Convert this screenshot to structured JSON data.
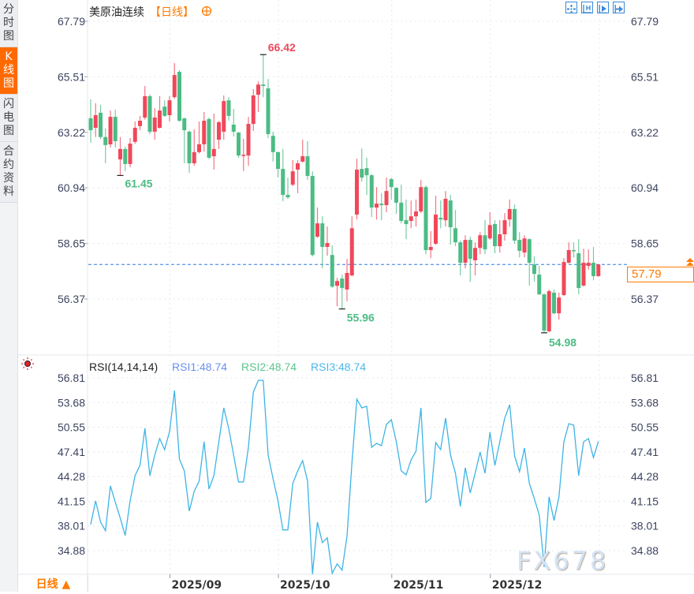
{
  "sidebar": {
    "tabs": [
      {
        "label": "分时图",
        "active": false
      },
      {
        "label": "K线图",
        "active": true
      },
      {
        "label": "闪电图",
        "active": false
      },
      {
        "label": "合约资料",
        "active": false
      }
    ]
  },
  "header": {
    "instrument": "美原油连续",
    "period": "【日线】",
    "add_icon": "plus-circle-icon"
  },
  "toolbar": {
    "icons": [
      "crosshair-icon",
      "fit-range-icon",
      "play-icon",
      "jump-to-end-icon"
    ]
  },
  "colors": {
    "up": "#f0485a",
    "down": "#4cbc84",
    "accent": "#ff7a00",
    "last_price_line": "#2f7fe0",
    "rsi_line": "#3db4e6",
    "rsi1": "#6b8ff0",
    "rsi2": "#5cc58d",
    "rsi3": "#4db6ea"
  },
  "rsi_header": {
    "title": "RSI(14,14,14)",
    "rsi1": "RSI1:48.74",
    "rsi2": "RSI2:48.74",
    "rsi3": "RSI3:48.74",
    "icon": "sun-icon"
  },
  "last_price": "57.79",
  "bottom": {
    "period_label": "日线 ▲"
  },
  "watermark": "FX678",
  "chart_data": [
    {
      "type": "candlestick",
      "ohlc_order": [
        "open",
        "high",
        "low",
        "close"
      ],
      "y_ticks": [
        "67.79",
        "65.51",
        "63.22",
        "60.94",
        "58.65",
        "56.37"
      ],
      "ylim": [
        54.6,
        67.79
      ],
      "grid": true,
      "annotations": {
        "max": "66.42",
        "max_index": 35,
        "min_left": "61.45",
        "min_left_index": 6,
        "min_mid": "55.96",
        "min_mid_index": 51,
        "min_right": "54.98",
        "min_right_index": 92
      },
      "x_labels": [
        {
          "label": "2025/09",
          "index": 16
        },
        {
          "label": "2025/10",
          "index": 38
        },
        {
          "label": "2025/11",
          "index": 61
        },
        {
          "label": "2025/12",
          "index": 81
        }
      ],
      "candles": [
        [
          63.8,
          64.58,
          62.8,
          63.31
        ],
        [
          63.41,
          64.42,
          63.03,
          63.93
        ],
        [
          64.03,
          64.35,
          62.95,
          63.03
        ],
        [
          63.03,
          63.38,
          61.95,
          62.7
        ],
        [
          62.73,
          64.12,
          62.6,
          63.86
        ],
        [
          63.86,
          64.16,
          62.6,
          62.86
        ],
        [
          62.11,
          63.03,
          61.45,
          62.54
        ],
        [
          62.54,
          62.64,
          61.63,
          61.92
        ],
        [
          61.92,
          62.99,
          61.79,
          62.76
        ],
        [
          62.83,
          63.67,
          62.75,
          63.41
        ],
        [
          63.48,
          63.9,
          63.31,
          63.7
        ],
        [
          63.83,
          65.13,
          63.75,
          64.71
        ],
        [
          64.71,
          64.78,
          63.15,
          63.25
        ],
        [
          63.25,
          64.22,
          62.92,
          63.83
        ],
        [
          63.41,
          64.71,
          63.38,
          64.12
        ],
        [
          64.28,
          64.54,
          63.86,
          63.9
        ],
        [
          63.93,
          64.71,
          63.67,
          64.54
        ],
        [
          64.67,
          66.07,
          64.61,
          65.58
        ],
        [
          65.71,
          65.78,
          63.65,
          63.7
        ],
        [
          63.8,
          63.83,
          61.95,
          63.31
        ],
        [
          63.25,
          63.3,
          61.55,
          61.95
        ],
        [
          61.95,
          63.34,
          61.85,
          62.41
        ],
        [
          62.41,
          63.67,
          62.35,
          62.73
        ],
        [
          62.73,
          64.06,
          62.43,
          63.7
        ],
        [
          63.77,
          63.83,
          62.12,
          62.18
        ],
        [
          62.24,
          63.99,
          61.69,
          62.54
        ],
        [
          62.92,
          63.7,
          62.54,
          63.64
        ],
        [
          63.25,
          64.74,
          62.92,
          64.51
        ],
        [
          64.54,
          64.67,
          63.7,
          63.9
        ],
        [
          63.54,
          64.19,
          63.05,
          63.25
        ],
        [
          63.21,
          63.25,
          62.18,
          62.27
        ],
        [
          62.27,
          62.96,
          61.63,
          62.3
        ],
        [
          62.27,
          63.86,
          61.85,
          63.57
        ],
        [
          63.57,
          65.0,
          63.28,
          64.74
        ],
        [
          64.77,
          65.32,
          64.06,
          65.19
        ],
        [
          65.19,
          66.42,
          64.67,
          65.13
        ],
        [
          65.03,
          65.42,
          62.99,
          63.15
        ],
        [
          63.08,
          63.25,
          62.02,
          62.41
        ],
        [
          62.41,
          62.43,
          61.36,
          61.72
        ],
        [
          61.72,
          62.54,
          60.39,
          60.65
        ],
        [
          60.65,
          61.36,
          60.49,
          60.55
        ],
        [
          61.07,
          62.08,
          61.01,
          61.62
        ],
        [
          61.69,
          62.08,
          60.72,
          61.95
        ],
        [
          62.02,
          62.92,
          61.98,
          62.24
        ],
        [
          62.24,
          62.86,
          61.27,
          61.43
        ],
        [
          61.43,
          61.62,
          58.12,
          58.18
        ],
        [
          58.93,
          60.13,
          58.88,
          59.48
        ],
        [
          59.48,
          59.77,
          57.63,
          58.51
        ],
        [
          58.51,
          59.35,
          58.15,
          58.67
        ],
        [
          58.18,
          58.57,
          56.82,
          56.88
        ],
        [
          56.91,
          57.24,
          56.07,
          57.11
        ],
        [
          57.21,
          57.37,
          55.96,
          56.82
        ],
        [
          56.76,
          58.02,
          56.27,
          57.44
        ],
        [
          57.34,
          59.77,
          57.3,
          59.28
        ],
        [
          59.84,
          62.14,
          59.64,
          61.69
        ],
        [
          61.72,
          62.56,
          61.2,
          61.36
        ],
        [
          61.75,
          62.18,
          60.65,
          61.46
        ],
        [
          61.46,
          61.5,
          59.74,
          60.13
        ],
        [
          60.13,
          60.97,
          59.64,
          60.29
        ],
        [
          60.29,
          60.72,
          59.61,
          60.23
        ],
        [
          60.23,
          61.36,
          59.94,
          60.81
        ],
        [
          61.3,
          61.36,
          60.46,
          60.97
        ],
        [
          60.94,
          60.97,
          59.87,
          60.33
        ],
        [
          60.33,
          61.07,
          59.48,
          59.58
        ],
        [
          59.61,
          60.46,
          58.83,
          59.45
        ],
        [
          59.58,
          60.42,
          59.28,
          59.77
        ],
        [
          59.77,
          60.46,
          59.35,
          59.97
        ],
        [
          59.97,
          61.27,
          59.9,
          60.97
        ],
        [
          60.97,
          61.04,
          58.21,
          58.38
        ],
        [
          58.38,
          59.16,
          58.05,
          58.51
        ],
        [
          58.64,
          60.62,
          58.6,
          59.84
        ],
        [
          59.71,
          60.42,
          59.28,
          59.64
        ],
        [
          59.61,
          60.81,
          59.35,
          60.49
        ],
        [
          60.42,
          60.65,
          58.6,
          59.32
        ],
        [
          59.28,
          60.03,
          58.54,
          58.7
        ],
        [
          58.7,
          58.77,
          57.34,
          57.86
        ],
        [
          57.86,
          58.99,
          57.63,
          58.8
        ],
        [
          58.8,
          58.93,
          57.08,
          58.02
        ],
        [
          57.96,
          58.7,
          57.34,
          58.47
        ],
        [
          58.47,
          59.12,
          58.21,
          58.99
        ],
        [
          58.99,
          59.61,
          58.21,
          58.41
        ],
        [
          58.86,
          59.94,
          58.8,
          59.41
        ],
        [
          59.45,
          59.61,
          58.25,
          58.54
        ],
        [
          58.54,
          59.61,
          58.28,
          59.03
        ],
        [
          59.03,
          59.9,
          58.77,
          59.61
        ],
        [
          59.64,
          60.46,
          59.35,
          60.07
        ],
        [
          60.07,
          60.26,
          58.64,
          58.77
        ],
        [
          58.8,
          59.12,
          58.08,
          58.35
        ],
        [
          58.28,
          58.99,
          58.08,
          58.86
        ],
        [
          58.83,
          58.86,
          56.92,
          57.86
        ],
        [
          57.79,
          58.12,
          57.08,
          57.4
        ],
        [
          57.37,
          57.73,
          56.53,
          56.56
        ],
        [
          56.56,
          56.6,
          54.98,
          55.07
        ],
        [
          55.04,
          56.76,
          55.0,
          56.69
        ],
        [
          56.63,
          56.76,
          55.74,
          55.78
        ],
        [
          55.78,
          56.63,
          55.52,
          56.43
        ],
        [
          56.53,
          58.05,
          56.5,
          57.89
        ],
        [
          57.86,
          58.7,
          57.83,
          58.38
        ],
        [
          58.38,
          58.7,
          58.08,
          58.35
        ],
        [
          58.25,
          58.83,
          56.56,
          56.82
        ],
        [
          56.92,
          58.44,
          56.88,
          57.86
        ],
        [
          57.73,
          58.41,
          57.57,
          57.86
        ],
        [
          57.86,
          58.51,
          57.14,
          57.31
        ],
        [
          57.31,
          57.8,
          57.28,
          57.79
        ]
      ],
      "last_price": 57.79
    },
    {
      "type": "line",
      "title": "RSI(14,14,14)",
      "y_ticks": [
        "56.81",
        "53.68",
        "50.55",
        "47.41",
        "44.28",
        "41.15",
        "38.01",
        "34.88"
      ],
      "ylim": [
        31.9,
        56.81
      ],
      "grid": true,
      "series": [
        {
          "name": "RSI1",
          "values": [
            38.2,
            41.2,
            38.5,
            37.4,
            43.1,
            41.0,
            39.0,
            36.8,
            41.2,
            44.4,
            45.7,
            50.4,
            44.4,
            47.0,
            49.1,
            47.7,
            50.0,
            55.2,
            46.5,
            45.0,
            39.9,
            42.4,
            43.7,
            48.7,
            42.7,
            44.4,
            48.7,
            53.0,
            50.4,
            47.0,
            43.6,
            43.6,
            48.0,
            55.0,
            56.5,
            56.5,
            47.0,
            44.0,
            41.2,
            37.5,
            37.5,
            43.4,
            45.0,
            46.3,
            43.7,
            31.9,
            38.5,
            35.9,
            36.5,
            32.0,
            33.2,
            32.4,
            36.7,
            46.0,
            54.1,
            53.0,
            53.2,
            48.0,
            48.5,
            48.2,
            50.9,
            51.5,
            48.7,
            45.0,
            44.5,
            46.4,
            47.5,
            53.0,
            41.0,
            41.5,
            48.6,
            47.7,
            51.7,
            47.0,
            44.7,
            40.5,
            45.4,
            42.2,
            44.7,
            47.4,
            44.7,
            49.9,
            45.7,
            48.7,
            51.7,
            53.4,
            46.9,
            44.9,
            47.9,
            43.4,
            41.5,
            39.4,
            32.8,
            41.7,
            38.7,
            41.7,
            48.7,
            51.0,
            50.8,
            44.4,
            48.7,
            49.1,
            46.7,
            48.74
          ]
        }
      ]
    }
  ]
}
